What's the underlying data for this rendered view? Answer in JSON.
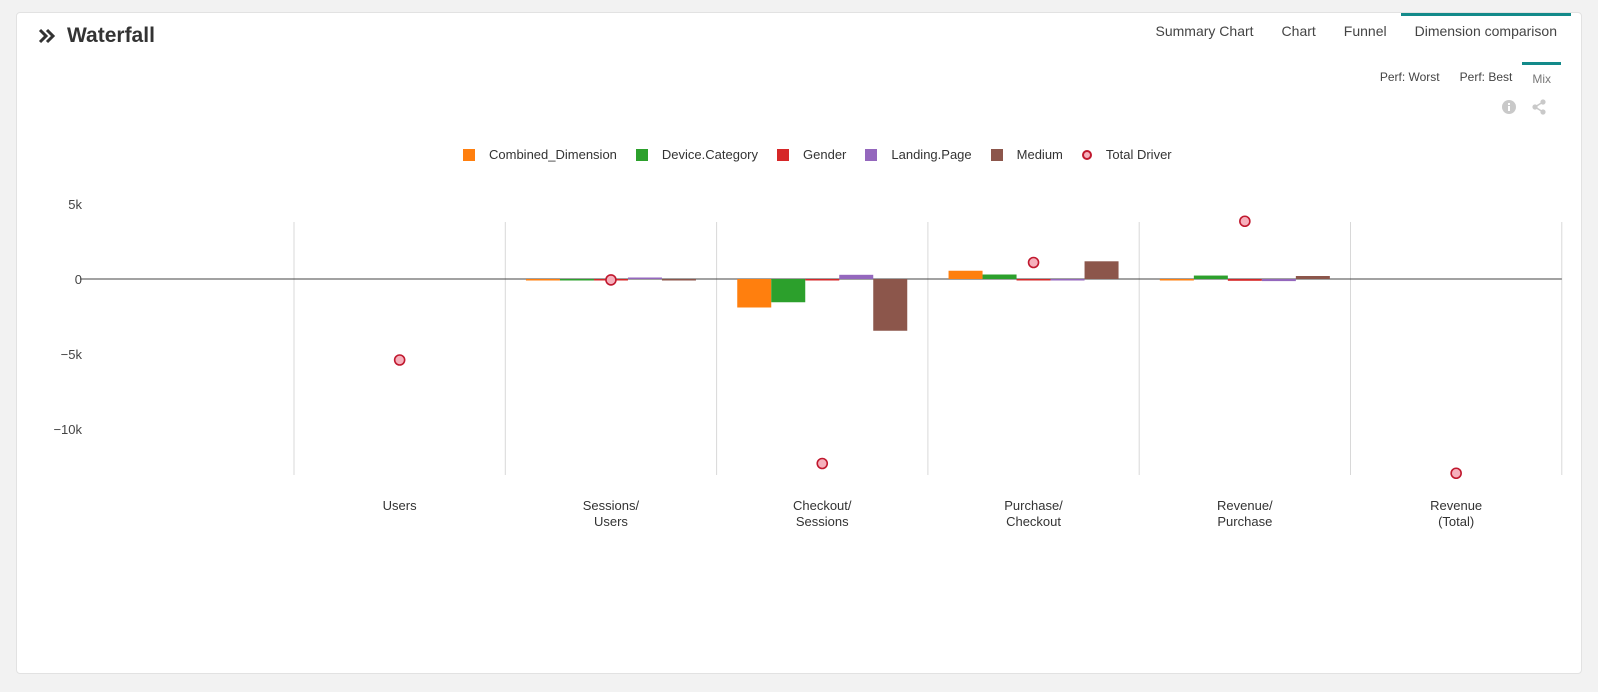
{
  "panel": {
    "title": "Waterfall",
    "tabs": [
      {
        "label": "Summary Chart",
        "active": false
      },
      {
        "label": "Chart",
        "active": false
      },
      {
        "label": "Funnel",
        "active": false
      },
      {
        "label": "Dimension comparison",
        "active": true
      }
    ],
    "subtabs": [
      {
        "label": "Perf: Worst",
        "active": false
      },
      {
        "label": "Perf: Best",
        "active": false
      },
      {
        "label": "Mix",
        "active": true
      }
    ],
    "icons": [
      "info-icon",
      "share-icon"
    ]
  },
  "chart_data": {
    "type": "bar",
    "categories": [
      "Users",
      "Sessions/\nUsers",
      "Checkout/\nSessions",
      "Purchase/\nCheckout",
      "Revenue/\nPurchase",
      "Revenue\n(Total)"
    ],
    "series": [
      {
        "name": "Combined_Dimension",
        "color": "#ff7f0e",
        "values": [
          0,
          -80,
          -1900,
          550,
          -70,
          0
        ]
      },
      {
        "name": "Device.Category",
        "color": "#2ca02c",
        "values": [
          0,
          -40,
          -1550,
          300,
          230,
          0
        ]
      },
      {
        "name": "Gender",
        "color": "#d62728",
        "values": [
          0,
          -20,
          -100,
          -80,
          -120,
          0
        ]
      },
      {
        "name": "Landing.Page",
        "color": "#9467bd",
        "values": [
          0,
          50,
          280,
          -50,
          -140,
          0
        ]
      },
      {
        "name": "Medium",
        "color": "#8c564b",
        "values": [
          0,
          -10,
          -3450,
          1180,
          200,
          0
        ]
      }
    ],
    "total_driver": {
      "name": "Total Driver",
      "values": [
        -5400,
        -60,
        -12300,
        1100,
        3850,
        -12950
      ]
    },
    "yticks": [
      {
        "v": 5000,
        "label": "5k"
      },
      {
        "v": 0,
        "label": "0"
      },
      {
        "v": -5000,
        "label": "−5k"
      },
      {
        "v": -10000,
        "label": "−10k"
      }
    ],
    "ylim": [
      -12950,
      3850
    ],
    "legend_position": "top-center",
    "grid": "vertical"
  }
}
